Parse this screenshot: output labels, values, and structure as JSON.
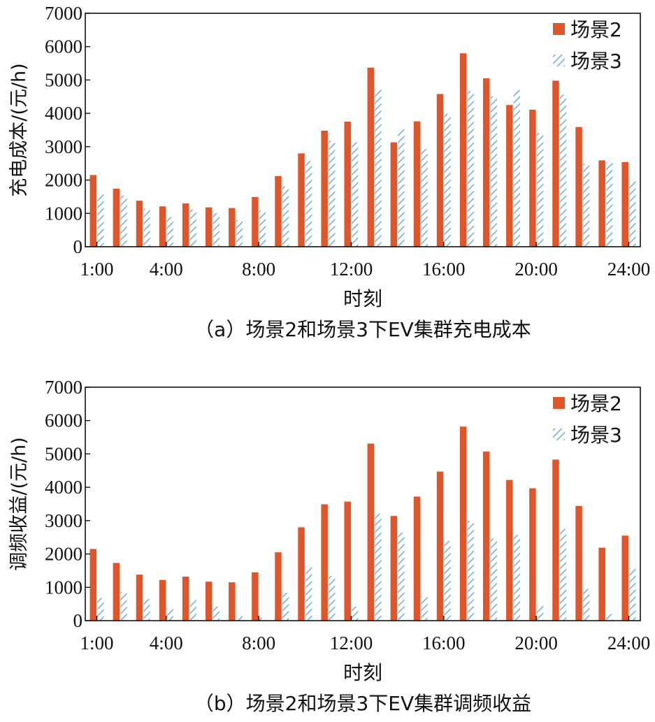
{
  "colors": {
    "s2": "#e0562a",
    "s3_stripe": "#6fb3e6",
    "s3_bg": "#ffffff"
  },
  "chart_data": [
    {
      "type": "bar",
      "caption": "（a）场景2和场景3下EV集群充电成本",
      "xlabel": "时刻",
      "ylabel": "充电成本/(元/h)",
      "ylim": [
        0,
        7000
      ],
      "yticks": [
        "0",
        "1000",
        "2000",
        "3000",
        "4000",
        "5000",
        "6000",
        "7000"
      ],
      "xticks": [
        "1:00",
        "4:00",
        "8:00",
        "12:00",
        "16:00",
        "20:00",
        "24:00"
      ],
      "xtick_hours": [
        1,
        4,
        8,
        12,
        16,
        20,
        24
      ],
      "legend_position": "top-right",
      "categories": [
        "1:00",
        "2:00",
        "3:00",
        "4:00",
        "5:00",
        "6:00",
        "7:00",
        "8:00",
        "9:00",
        "10:00",
        "11:00",
        "12:00",
        "13:00",
        "14:00",
        "15:00",
        "16:00",
        "17:00",
        "18:00",
        "19:00",
        "20:00",
        "21:00",
        "22:00",
        "23:00",
        "24:00"
      ],
      "series": [
        {
          "name": "场景2",
          "values": [
            2150,
            1740,
            1380,
            1210,
            1300,
            1180,
            1160,
            1490,
            2120,
            2800,
            3480,
            3750,
            5370,
            3130,
            3760,
            4580,
            5800,
            5050,
            4250,
            4110,
            4980,
            3590,
            2590,
            2540
          ]
        },
        {
          "name": "场景3",
          "values": [
            1580,
            1540,
            1140,
            890,
            1110,
            1010,
            800,
            1080,
            1810,
            2570,
            3180,
            3130,
            4730,
            3520,
            2930,
            3990,
            4670,
            4510,
            4700,
            3410,
            4560,
            2490,
            2540,
            1960
          ]
        }
      ]
    },
    {
      "type": "bar",
      "caption": "（b）场景2和场景3下EV集群调频收益",
      "xlabel": "时刻",
      "ylabel": "调频收益/(元/h)",
      "ylim": [
        0,
        7000
      ],
      "yticks": [
        "0",
        "1000",
        "2000",
        "3000",
        "4000",
        "5000",
        "6000",
        "7000"
      ],
      "xticks": [
        "1:00",
        "4:00",
        "8:00",
        "12:00",
        "16:00",
        "20:00",
        "24:00"
      ],
      "xtick_hours": [
        1,
        4,
        8,
        12,
        16,
        20,
        24
      ],
      "legend_position": "top-right",
      "categories": [
        "1:00",
        "2:00",
        "3:00",
        "4:00",
        "5:00",
        "6:00",
        "7:00",
        "8:00",
        "9:00",
        "10:00",
        "11:00",
        "12:00",
        "13:00",
        "14:00",
        "15:00",
        "16:00",
        "17:00",
        "18:00",
        "19:00",
        "20:00",
        "21:00",
        "22:00",
        "23:00",
        "24:00"
      ],
      "series": [
        {
          "name": "场景2",
          "values": [
            2150,
            1730,
            1380,
            1220,
            1320,
            1170,
            1150,
            1450,
            2050,
            2800,
            3490,
            3570,
            5310,
            3140,
            3720,
            4470,
            5820,
            5070,
            4220,
            3970,
            4830,
            3440,
            2190,
            2550
          ]
        },
        {
          "name": "场景3",
          "values": [
            680,
            860,
            650,
            360,
            620,
            420,
            140,
            90,
            840,
            1620,
            1340,
            420,
            3210,
            2640,
            720,
            2390,
            2990,
            2460,
            2570,
            460,
            2750,
            950,
            200,
            1580
          ]
        }
      ]
    }
  ]
}
